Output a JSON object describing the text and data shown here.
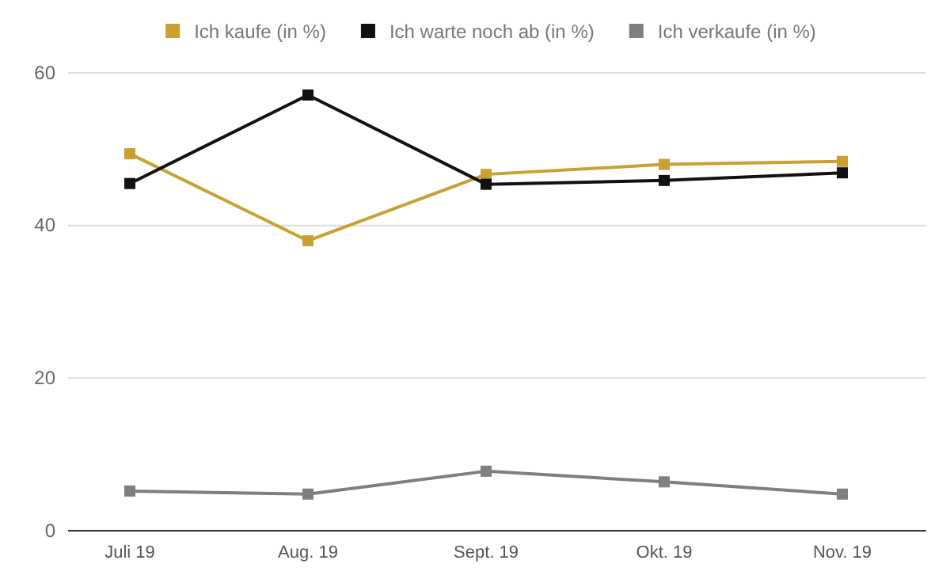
{
  "chart_data": {
    "type": "line",
    "categories": [
      "Juli 19",
      "Aug. 19",
      "Sept. 19",
      "Okt. 19",
      "Nov. 19"
    ],
    "series": [
      {
        "name": "Ich kaufe (in %)",
        "color": "#c9a032",
        "values": [
          49.4,
          38.0,
          46.7,
          48.0,
          48.4
        ]
      },
      {
        "name": "Ich warte noch ab (in %)",
        "color": "#111111",
        "values": [
          45.5,
          57.1,
          45.4,
          45.9,
          46.9
        ]
      },
      {
        "name": "Ich verkaufe (in %)",
        "color": "#7f7f7f",
        "values": [
          5.2,
          4.8,
          7.8,
          6.4,
          4.8
        ]
      }
    ],
    "ylim": [
      0,
      60
    ],
    "yticks": [
      0,
      20,
      40,
      60
    ],
    "grid": "y",
    "legend": "top",
    "marker": "square",
    "line_style": "solid"
  }
}
